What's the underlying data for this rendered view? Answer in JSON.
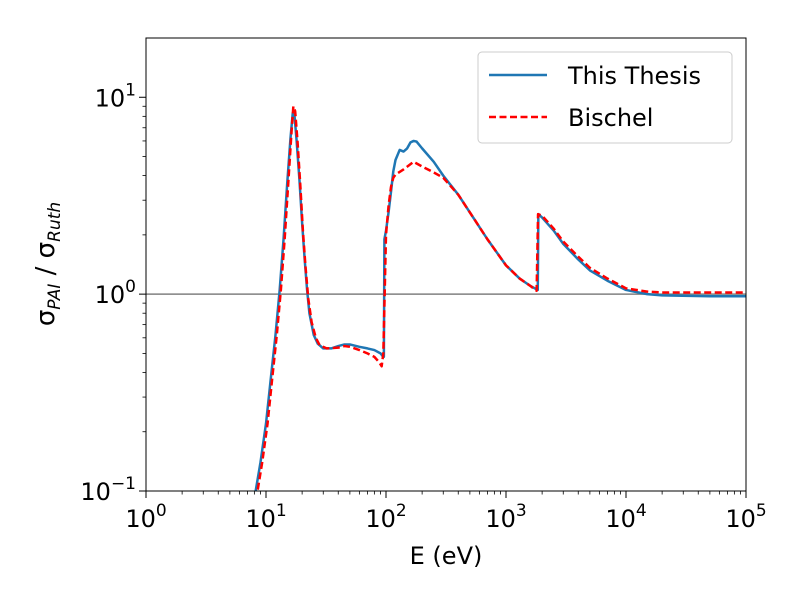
{
  "chart_data": {
    "type": "line",
    "xscale": "log",
    "yscale": "log",
    "xlim": [
      1,
      100000
    ],
    "ylim": [
      0.1,
      20
    ],
    "xlabel": "E (eV)",
    "ylabel": {
      "main1": "σ",
      "sub1": "PAI",
      "slash": " / ",
      "main2": "σ",
      "sub2": "Ruth"
    },
    "x_ticks": [
      {
        "value": 1,
        "base": "10",
        "exp": "0"
      },
      {
        "value": 10,
        "base": "10",
        "exp": "1"
      },
      {
        "value": 100,
        "base": "10",
        "exp": "2"
      },
      {
        "value": 1000,
        "base": "10",
        "exp": "3"
      },
      {
        "value": 10000,
        "base": "10",
        "exp": "4"
      },
      {
        "value": 100000,
        "base": "10",
        "exp": "5"
      }
    ],
    "y_ticks": [
      {
        "value": 0.1,
        "base": "10",
        "exp": "−1"
      },
      {
        "value": 1,
        "base": "10",
        "exp": "0"
      },
      {
        "value": 10,
        "base": "10",
        "exp": "1"
      }
    ],
    "reference_line": {
      "y": 1,
      "color": "#808080"
    },
    "grid": false,
    "legend_position": "top-right",
    "series": [
      {
        "name": "This Thesis",
        "color": "#1f77b4",
        "dash": "solid",
        "points": [
          [
            7.6,
            0.08
          ],
          [
            8.2,
            0.1
          ],
          [
            9,
            0.14
          ],
          [
            10,
            0.22
          ],
          [
            11,
            0.38
          ],
          [
            12,
            0.62
          ],
          [
            13,
            1.05
          ],
          [
            14,
            1.9
          ],
          [
            15,
            3.6
          ],
          [
            16,
            6.2
          ],
          [
            16.7,
            8.3
          ],
          [
            17.3,
            8.0
          ],
          [
            18,
            6.0
          ],
          [
            19,
            3.8
          ],
          [
            20,
            2.3
          ],
          [
            21,
            1.5
          ],
          [
            22,
            1.05
          ],
          [
            23,
            0.8
          ],
          [
            25,
            0.62
          ],
          [
            27,
            0.56
          ],
          [
            30,
            0.53
          ],
          [
            35,
            0.53
          ],
          [
            40,
            0.545
          ],
          [
            45,
            0.555
          ],
          [
            50,
            0.555
          ],
          [
            60,
            0.54
          ],
          [
            70,
            0.53
          ],
          [
            80,
            0.52
          ],
          [
            90,
            0.5
          ],
          [
            95,
            0.48
          ],
          [
            96,
            0.48
          ],
          [
            97,
            1.9
          ],
          [
            100,
            2.1
          ],
          [
            105,
            2.6
          ],
          [
            110,
            3.3
          ],
          [
            115,
            4.2
          ],
          [
            120,
            4.8
          ],
          [
            130,
            5.4
          ],
          [
            140,
            5.3
          ],
          [
            150,
            5.5
          ],
          [
            160,
            5.9
          ],
          [
            170,
            6.0
          ],
          [
            180,
            5.95
          ],
          [
            200,
            5.5
          ],
          [
            250,
            4.7
          ],
          [
            300,
            4.0
          ],
          [
            400,
            3.2
          ],
          [
            500,
            2.6
          ],
          [
            700,
            1.9
          ],
          [
            1000,
            1.4
          ],
          [
            1300,
            1.2
          ],
          [
            1600,
            1.1
          ],
          [
            1840,
            1.05
          ],
          [
            1860,
            2.55
          ],
          [
            2000,
            2.45
          ],
          [
            2500,
            2.1
          ],
          [
            3000,
            1.8
          ],
          [
            4000,
            1.5
          ],
          [
            5000,
            1.32
          ],
          [
            7000,
            1.17
          ],
          [
            10000,
            1.05
          ],
          [
            15000,
            1.0
          ],
          [
            20000,
            0.985
          ],
          [
            50000,
            0.975
          ],
          [
            100000,
            0.975
          ]
        ]
      },
      {
        "name": "Bischel",
        "color": "#ff0000",
        "dash": "dashed",
        "points": [
          [
            7.8,
            0.08
          ],
          [
            8.5,
            0.1
          ],
          [
            9.3,
            0.14
          ],
          [
            10.3,
            0.22
          ],
          [
            11.3,
            0.38
          ],
          [
            12.3,
            0.62
          ],
          [
            13.3,
            1.05
          ],
          [
            14.3,
            1.9
          ],
          [
            15.3,
            3.6
          ],
          [
            16.3,
            6.6
          ],
          [
            16.9,
            9.0
          ],
          [
            17.5,
            8.5
          ],
          [
            18.3,
            6.0
          ],
          [
            19.3,
            3.6
          ],
          [
            20.3,
            2.1
          ],
          [
            21.3,
            1.4
          ],
          [
            22.5,
            0.95
          ],
          [
            24,
            0.72
          ],
          [
            26,
            0.6
          ],
          [
            28,
            0.55
          ],
          [
            32,
            0.53
          ],
          [
            40,
            0.535
          ],
          [
            45,
            0.545
          ],
          [
            50,
            0.54
          ],
          [
            60,
            0.52
          ],
          [
            70,
            0.5
          ],
          [
            80,
            0.48
          ],
          [
            88,
            0.45
          ],
          [
            92,
            0.43
          ],
          [
            95,
            0.5
          ],
          [
            100,
            2.0
          ],
          [
            105,
            2.8
          ],
          [
            110,
            3.5
          ],
          [
            115,
            3.9
          ],
          [
            120,
            4.05
          ],
          [
            140,
            4.3
          ],
          [
            170,
            4.7
          ],
          [
            200,
            4.45
          ],
          [
            250,
            4.15
          ],
          [
            300,
            3.9
          ],
          [
            400,
            3.2
          ],
          [
            500,
            2.6
          ],
          [
            700,
            1.9
          ],
          [
            1000,
            1.4
          ],
          [
            1300,
            1.2
          ],
          [
            1600,
            1.1
          ],
          [
            1800,
            1.04
          ],
          [
            1850,
            2.55
          ],
          [
            2000,
            2.5
          ],
          [
            2500,
            2.15
          ],
          [
            3000,
            1.85
          ],
          [
            4000,
            1.55
          ],
          [
            5000,
            1.36
          ],
          [
            7000,
            1.2
          ],
          [
            10000,
            1.07
          ],
          [
            15000,
            1.03
          ],
          [
            20000,
            1.02
          ],
          [
            50000,
            1.02
          ],
          [
            100000,
            1.02
          ]
        ]
      }
    ]
  }
}
